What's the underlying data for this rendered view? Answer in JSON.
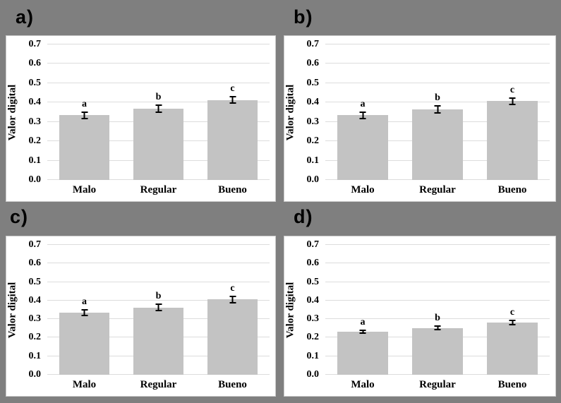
{
  "figure": {
    "background_color": "#7f7f7f",
    "panel_background": "#ffffff",
    "bar_color": "#c3c3c3",
    "gridline_color": "#dcdcdc",
    "error_bar_color": "#000000"
  },
  "chart_data": [
    {
      "type": "bar",
      "panel_label": "a)",
      "ylabel": "Valor digital",
      "xlabel": "",
      "categories": [
        "Malo",
        "Regular",
        "Bueno"
      ],
      "values": [
        0.335,
        0.368,
        0.413
      ],
      "errors": [
        0.02,
        0.022,
        0.02
      ],
      "significance_letters": [
        "a",
        "b",
        "c"
      ],
      "ylim": [
        0,
        0.7
      ],
      "yticks": [
        "0.0",
        "0.1",
        "0.2",
        "0.3",
        "0.4",
        "0.5",
        "0.6",
        "0.7"
      ],
      "grid": true,
      "legend": false
    },
    {
      "type": "bar",
      "panel_label": "b)",
      "ylabel": "Valor digital",
      "xlabel": "",
      "categories": [
        "Malo",
        "Regular",
        "Bueno"
      ],
      "values": [
        0.335,
        0.365,
        0.408
      ],
      "errors": [
        0.02,
        0.022,
        0.02
      ],
      "significance_letters": [
        "a",
        "b",
        "c"
      ],
      "ylim": [
        0,
        0.7
      ],
      "yticks": [
        "0.0",
        "0.1",
        "0.2",
        "0.3",
        "0.4",
        "0.5",
        "0.6",
        "0.7"
      ],
      "grid": true,
      "legend": false
    },
    {
      "type": "bar",
      "panel_label": "c)",
      "ylabel": "Valor digital",
      "xlabel": "",
      "categories": [
        "Malo",
        "Regular",
        "Bueno"
      ],
      "values": [
        0.335,
        0.362,
        0.406
      ],
      "errors": [
        0.02,
        0.021,
        0.02
      ],
      "significance_letters": [
        "a",
        "b",
        "c"
      ],
      "ylim": [
        0,
        0.7
      ],
      "yticks": [
        "0.0",
        "0.1",
        "0.2",
        "0.3",
        "0.4",
        "0.5",
        "0.6",
        "0.7"
      ],
      "grid": true,
      "legend": false
    },
    {
      "type": "bar",
      "panel_label": "d)",
      "ylabel": "Valor digital",
      "xlabel": "",
      "categories": [
        "Malo",
        "Regular",
        "Bueno"
      ],
      "values": [
        0.232,
        0.252,
        0.283
      ],
      "errors": [
        0.013,
        0.013,
        0.015
      ],
      "significance_letters": [
        "a",
        "b",
        "c"
      ],
      "ylim": [
        0,
        0.7
      ],
      "yticks": [
        "0.0",
        "0.1",
        "0.2",
        "0.3",
        "0.4",
        "0.5",
        "0.6",
        "0.7"
      ],
      "grid": true,
      "legend": false
    }
  ]
}
